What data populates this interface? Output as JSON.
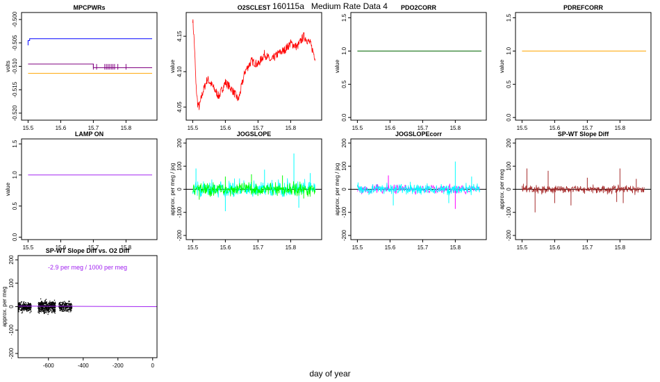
{
  "page": {
    "title": "160115a   Medium Rate Data 4",
    "x_axis_label": "day of year"
  },
  "chart_data": [
    {
      "id": "mpcpwrs",
      "type": "line",
      "title": "MPCPWRs",
      "ylabel": "volts",
      "xlim": [
        15.48,
        15.895
      ],
      "ylim": [
        -0.5215,
        -0.4985
      ],
      "xticks": [
        15.5,
        15.6,
        15.7,
        15.8
      ],
      "xtick_labels": [
        "15.5",
        "15.6",
        "15.7",
        "15.8"
      ],
      "yticks": [
        -0.52,
        -0.515,
        -0.51,
        -0.505,
        -0.5
      ],
      "ytick_labels": [
        "-0.520",
        "-0.515",
        "-0.510",
        "-0.505",
        "-0.500"
      ],
      "series": [
        {
          "color": "#0000ff",
          "kind": "steps",
          "x": [
            15.5,
            15.5,
            15.505,
            15.505,
            15.88
          ],
          "y": [
            -0.5055,
            -0.5045,
            -0.5045,
            -0.5041,
            -0.5041
          ]
        },
        {
          "color": "#800080",
          "kind": "steps",
          "x": [
            15.5,
            15.7,
            15.7,
            15.88
          ],
          "y": [
            -0.5095,
            -0.5095,
            -0.5103,
            -0.5103
          ]
        },
        {
          "color": "#ffa500",
          "kind": "steps",
          "x": [
            15.5,
            15.88
          ],
          "y": [
            -0.5115,
            -0.5115
          ]
        }
      ],
      "spikes": {
        "color": "#800080",
        "y0": -0.5095,
        "y1": -0.5107,
        "x": [
          15.7,
          15.71,
          15.735,
          15.74,
          15.745,
          15.75,
          15.755,
          15.76,
          15.765,
          15.775,
          15.8
        ]
      }
    },
    {
      "id": "o2sclest",
      "type": "line",
      "title": "O2SCLEST",
      "ylabel": "value",
      "xlim": [
        15.48,
        15.895
      ],
      "ylim": [
        4.0315,
        4.1835
      ],
      "xticks": [
        15.5,
        15.6,
        15.7,
        15.8
      ],
      "xtick_labels": [
        "15.5",
        "15.6",
        "15.7",
        "15.8"
      ],
      "yticks": [
        4.05,
        4.1,
        4.15
      ],
      "ytick_labels": [
        "4.05",
        "4.10",
        "4.15"
      ],
      "series": [
        {
          "color": "#ff0000",
          "kind": "noisy",
          "noise": 0.012,
          "x": [
            15.5,
            15.505,
            15.51,
            15.515,
            15.52,
            15.53,
            15.545,
            15.56,
            15.58,
            15.6,
            15.62,
            15.64,
            15.66,
            15.68,
            15.7,
            15.72,
            15.74,
            15.76,
            15.78,
            15.8,
            15.82,
            15.84,
            15.86,
            15.875
          ],
          "y": [
            4.175,
            4.14,
            4.08,
            4.055,
            4.05,
            4.07,
            4.09,
            4.08,
            4.065,
            4.085,
            4.075,
            4.06,
            4.1,
            4.115,
            4.11,
            4.125,
            4.115,
            4.125,
            4.13,
            4.14,
            4.135,
            4.15,
            4.14,
            4.12
          ]
        }
      ]
    },
    {
      "id": "pdo2corr",
      "type": "line",
      "title": "PDO2CORR",
      "ylabel": "value",
      "xlim": [
        15.48,
        15.895
      ],
      "ylim": [
        -0.04,
        1.58
      ],
      "xticks": [
        15.5,
        15.6,
        15.7,
        15.8
      ],
      "xtick_labels": [
        "15.5",
        "15.6",
        "15.7",
        "15.8"
      ],
      "yticks": [
        0.0,
        0.5,
        1.0,
        1.5
      ],
      "ytick_labels": [
        "0.0",
        "0.5",
        "1.0",
        "1.5"
      ],
      "series": [
        {
          "color": "#006400",
          "kind": "steps",
          "x": [
            15.5,
            15.88
          ],
          "y": [
            1.0,
            1.0
          ]
        }
      ]
    },
    {
      "id": "pdrefcorr",
      "type": "line",
      "title": "PDREFCORR",
      "ylabel": "value",
      "xlim": [
        15.48,
        15.895
      ],
      "ylim": [
        -0.04,
        1.58
      ],
      "xticks": [
        15.5,
        15.6,
        15.7,
        15.8
      ],
      "xtick_labels": [
        "15.5",
        "15.6",
        "15.7",
        "15.8"
      ],
      "yticks": [
        0.0,
        0.5,
        1.0,
        1.5
      ],
      "ytick_labels": [
        "0.0",
        "0.5",
        "1.0",
        "1.5"
      ],
      "series": [
        {
          "color": "#ffa500",
          "kind": "steps",
          "x": [
            15.5,
            15.88
          ],
          "y": [
            1.0,
            1.0
          ]
        }
      ]
    },
    {
      "id": "lamp_on",
      "type": "line",
      "title": "LAMP ON",
      "ylabel": "value",
      "xlim": [
        15.48,
        15.895
      ],
      "ylim": [
        -0.04,
        1.58
      ],
      "xticks": [
        15.5,
        15.6,
        15.7,
        15.8
      ],
      "xtick_labels": [
        "15.5",
        "15.6",
        "15.7",
        "15.8"
      ],
      "yticks": [
        0.0,
        0.5,
        1.0,
        1.5
      ],
      "ytick_labels": [
        "0.0",
        "0.5",
        "1.0",
        "1.5"
      ],
      "series": [
        {
          "color": "#a020f0",
          "kind": "steps",
          "x": [
            15.5,
            15.88
          ],
          "y": [
            1.0,
            1.0
          ]
        }
      ]
    },
    {
      "id": "jogslope",
      "type": "line",
      "title": "JOGSLOPE",
      "ylabel": "approx. per meg / jog",
      "xlim": [
        15.48,
        15.895
      ],
      "ylim": [
        -218,
        218
      ],
      "xticks": [
        15.5,
        15.6,
        15.7,
        15.8
      ],
      "xtick_labels": [
        "15.5",
        "15.6",
        "15.7",
        "15.8"
      ],
      "yticks": [
        -200,
        -100,
        0,
        100,
        200
      ],
      "ytick_labels": [
        "-200",
        "-100",
        "0",
        "100",
        "200"
      ],
      "zero_line": true,
      "series": [
        {
          "color": "#00ffff",
          "kind": "noise",
          "x0": 15.5,
          "x1": 15.875,
          "n": 340,
          "amp": 38,
          "spikes": [
            [
              15.51,
              90
            ],
            [
              15.6,
              -95
            ],
            [
              15.72,
              85
            ],
            [
              15.81,
              155
            ],
            [
              15.825,
              -80
            ],
            [
              15.86,
              70
            ]
          ]
        },
        {
          "color": "#00ff00",
          "kind": "noise",
          "x0": 15.5,
          "x1": 15.875,
          "n": 340,
          "amp": 30,
          "spikes": [
            [
              15.52,
              -45
            ],
            [
              15.6,
              55
            ],
            [
              15.68,
              65
            ],
            [
              15.775,
              60
            ],
            [
              15.84,
              -40
            ]
          ]
        }
      ]
    },
    {
      "id": "jogslopecorr",
      "type": "line",
      "title": "JOGSLOPEcorr",
      "ylabel": "approx. per meg / jog",
      "xlim": [
        15.48,
        15.895
      ],
      "ylim": [
        -218,
        218
      ],
      "xticks": [
        15.5,
        15.6,
        15.7,
        15.8
      ],
      "xtick_labels": [
        "15.5",
        "15.6",
        "15.7",
        "15.8"
      ],
      "yticks": [
        -200,
        -100,
        0,
        100,
        200
      ],
      "ytick_labels": [
        "-200",
        "-100",
        "0",
        "100",
        "200"
      ],
      "zero_line": true,
      "series": [
        {
          "color": "#ff00ff",
          "kind": "noise",
          "x0": 15.5,
          "x1": 15.875,
          "n": 200,
          "amp": 22,
          "spikes": [
            [
              15.8,
              -85
            ],
            [
              15.595,
              60
            ]
          ]
        },
        {
          "color": "#00ffff",
          "kind": "noise",
          "x0": 15.5,
          "x1": 15.875,
          "n": 340,
          "amp": 24,
          "spikes": [
            [
              15.8,
              120
            ],
            [
              15.61,
              -70
            ],
            [
              15.78,
              -60
            ],
            [
              15.85,
              55
            ]
          ]
        }
      ]
    },
    {
      "id": "spwt_slope_diff",
      "type": "line",
      "title": "SP-WT Slope Diff",
      "ylabel": "approx. per meg",
      "xlim": [
        15.48,
        15.895
      ],
      "ylim": [
        -218,
        218
      ],
      "xticks": [
        15.5,
        15.6,
        15.7,
        15.8
      ],
      "xtick_labels": [
        "15.5",
        "15.6",
        "15.7",
        "15.8"
      ],
      "yticks": [
        -200,
        -100,
        0,
        100,
        200
      ],
      "ytick_labels": [
        "-200",
        "-100",
        "0",
        "100",
        "200"
      ],
      "zero_line": true,
      "series": [
        {
          "color": "#a52a2a",
          "kind": "noise",
          "x0": 15.5,
          "x1": 15.875,
          "n": 360,
          "amp": 20,
          "spikes": [
            [
              15.515,
              90
            ],
            [
              15.54,
              -100
            ],
            [
              15.58,
              80
            ],
            [
              15.6,
              -60
            ],
            [
              15.65,
              -70
            ],
            [
              15.7,
              50
            ],
            [
              15.79,
              -55
            ],
            [
              15.8,
              90
            ],
            [
              15.81,
              -60
            ],
            [
              15.85,
              45
            ]
          ]
        }
      ]
    },
    {
      "id": "spwt_vs_o2diff",
      "type": "scatter",
      "title": "SP-WT Slope Diff vs. O2 Diff",
      "ylabel": "approx. per meg",
      "annotation": "-2.9 per meg / 1000 per meg",
      "annotation_color": "#a020f0",
      "xlim": [
        -775,
        25
      ],
      "ylim": [
        -218,
        218
      ],
      "xticks": [
        -600,
        -400,
        -200,
        0
      ],
      "xtick_labels": [
        "-600",
        "-400",
        "-200",
        "0"
      ],
      "yticks": [
        -200,
        -100,
        0,
        100,
        200
      ],
      "ytick_labels": [
        "-200",
        "-100",
        "0",
        "100",
        "200"
      ],
      "clusters": [
        {
          "xmin": -780,
          "xmax": -700,
          "sd": 16,
          "n": 320
        },
        {
          "xmin": -660,
          "xmax": -560,
          "sd": 20,
          "n": 520
        },
        {
          "xmin": -540,
          "xmax": -465,
          "sd": 16,
          "n": 260
        }
      ],
      "point_color": "#000000",
      "fit_line": {
        "color": "#a020f0",
        "x": [
          -775,
          25
        ],
        "y": [
          2.2,
          -0.1
        ]
      }
    }
  ]
}
